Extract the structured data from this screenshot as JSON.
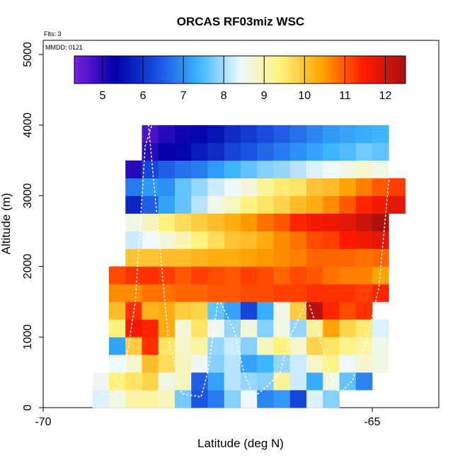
{
  "chart_data": {
    "type": "heatmap",
    "title": "ORCAS RF03miz WSC",
    "xlabel": "Latitude (deg N)",
    "ylabel": "Altitude (m)",
    "corner_label": "Flts: 3",
    "date_label": "MMDD: 0121",
    "x_range": [
      -70,
      -64
    ],
    "y_range": [
      0,
      5200
    ],
    "x_ticks": [
      -70,
      -65
    ],
    "x_tick_labels": [
      "-70",
      "-65"
    ],
    "y_ticks": [
      0,
      1000,
      2000,
      3000,
      4000,
      5000
    ],
    "y_tick_labels": [
      "0",
      "1000",
      "2000",
      "3000",
      "4000",
      "5000"
    ],
    "colorbar": {
      "range": [
        4.3,
        12.5
      ],
      "ticks": [
        5,
        6,
        7,
        8,
        9,
        10,
        11,
        12
      ],
      "tick_labels": [
        "5",
        "6",
        "7",
        "8",
        "9",
        "10",
        "11",
        "12"
      ],
      "stops": [
        "#7a1fe0",
        "#0000a8",
        "#1a4fe0",
        "#3ab4ff",
        "#eef8ff",
        "#fff27a",
        "#ffa000",
        "#ff1a00",
        "#a81010"
      ]
    },
    "cell_width_deg": 0.25,
    "cell_height_m": 250,
    "rows": [
      {
        "alt": 125,
        "start": -69.25,
        "values": [
          8.3,
          8.6,
          9.1,
          9.1,
          8.9,
          7.7,
          6.4,
          6.8,
          7.8,
          8.4,
          6.9,
          7.1,
          6.2,
          8.3,
          7.8
        ]
      },
      {
        "alt": 375,
        "start": -69.25,
        "values": [
          8.5,
          9.4,
          9.6,
          9.8,
          8.6,
          8.9,
          6.5,
          7.2,
          8.1,
          7.9,
          7.8,
          9.2,
          8.2,
          7.3,
          8.6,
          7.6,
          6.9
        ]
      },
      {
        "alt": 625,
        "start": -69.0,
        "values": [
          8.4,
          8.8,
          10.1,
          9.7,
          8.9,
          8.5,
          7.8,
          8.1,
          7.2,
          7.4,
          7.9,
          8.2,
          8.8,
          9.3,
          8.4,
          8.8,
          8.6
        ]
      },
      {
        "alt": 875,
        "start": -69.0,
        "values": [
          7.2,
          9.9,
          11.3,
          9.6,
          8.8,
          9.1,
          7.9,
          8.2,
          7.8,
          8.9,
          9.4,
          8.8,
          9.8,
          9.6,
          9.3,
          9.1,
          8.6
        ]
      },
      {
        "alt": 1125,
        "start": -69.0,
        "values": [
          9.4,
          11.6,
          11.4,
          10.3,
          8.7,
          9.6,
          8.5,
          7.9,
          8.7,
          7.8,
          8.6,
          7.9,
          9.2,
          10.4,
          9.8,
          9.5,
          8.3
        ]
      },
      {
        "alt": 1375,
        "start": -69.0,
        "values": [
          10.1,
          11.3,
          10.2,
          10.3,
          9.9,
          9.8,
          7.6,
          7.2,
          6.2,
          7.3,
          8.6,
          9.9,
          12.3,
          11.4,
          11.1,
          11.3
        ]
      },
      {
        "alt": 1625,
        "start": -69.0,
        "values": [
          10.6,
          10.6,
          10.8,
          10.8,
          10.9,
          10.9,
          11.0,
          11.0,
          11.1,
          11.1,
          11.2,
          11.2,
          11.3,
          11.3,
          11.3,
          11.2,
          11.4
        ]
      },
      {
        "alt": 1875,
        "start": -69.0,
        "values": [
          11.1,
          11.3,
          11.3,
          11.2,
          11.0,
          11.2,
          11.1,
          11.0,
          11.2,
          11.1,
          10.9,
          11.1,
          11.0,
          10.8,
          10.7,
          10.7,
          10.4
        ]
      },
      {
        "alt": 2125,
        "start": -68.75,
        "values": [
          10.0,
          10.0,
          10.1,
          10.1,
          10.2,
          10.3,
          10.3,
          10.4,
          10.5,
          10.6,
          10.7,
          10.9,
          10.9,
          10.9,
          10.8,
          10.9
        ]
      },
      {
        "alt": 2375,
        "start": -68.75,
        "values": [
          8.2,
          8.4,
          8.7,
          9.0,
          9.4,
          9.7,
          10.0,
          10.1,
          10.3,
          10.6,
          10.8,
          11.1,
          11.2,
          11.5,
          11.6,
          11.8
        ]
      },
      {
        "alt": 2625,
        "start": -68.75,
        "values": [
          8.6,
          8.9,
          9.4,
          9.7,
          9.9,
          10.1,
          10.3,
          10.5,
          10.8,
          11.0,
          11.4,
          11.6,
          11.7,
          11.8,
          12.1,
          12.4
        ]
      },
      {
        "alt": 2875,
        "start": -68.75,
        "values": [
          5.8,
          6.5,
          7.2,
          7.6,
          8.1,
          8.6,
          8.9,
          9.4,
          9.6,
          9.8,
          10.1,
          10.3,
          10.6,
          11.0,
          11.4,
          11.6,
          11.8
        ]
      },
      {
        "alt": 3125,
        "start": -68.75,
        "values": [
          6.8,
          7.1,
          7.0,
          7.6,
          7.9,
          8.2,
          8.4,
          8.7,
          9.2,
          9.5,
          9.6,
          10.0,
          10.1,
          10.4,
          10.7,
          11.0,
          11.2
        ]
      },
      {
        "alt": 3375,
        "start": -68.75,
        "values": [
          5.0,
          6.2,
          6.5,
          6.7,
          6.8,
          7.1,
          7.4,
          7.6,
          7.8,
          7.9,
          8.1,
          8.3,
          8.4,
          8.6,
          8.8,
          8.6
        ]
      },
      {
        "alt": 3625,
        "start": -68.5,
        "values": [
          5.0,
          5.3,
          5.4,
          5.7,
          5.9,
          6.2,
          6.4,
          6.6,
          6.8,
          7.0,
          7.2,
          7.4,
          7.5,
          7.7,
          7.6
        ]
      },
      {
        "alt": 3875,
        "start": -68.5,
        "values": [
          4.7,
          5.0,
          5.2,
          5.4,
          5.6,
          5.9,
          6.1,
          6.3,
          6.5,
          6.7,
          6.9,
          7.1,
          7.2,
          7.3,
          7.4
        ]
      }
    ],
    "flight_tracks": [
      [
        [
          -69.1,
          200
        ],
        [
          -68.9,
          180
        ],
        [
          -68.75,
          600
        ],
        [
          -68.6,
          1500
        ],
        [
          -68.45,
          3700
        ],
        [
          -68.35,
          4000
        ]
      ],
      [
        [
          -68.4,
          4000
        ],
        [
          -68.25,
          2500
        ],
        [
          -68.1,
          1000
        ],
        [
          -67.9,
          200
        ],
        [
          -67.6,
          150
        ],
        [
          -67.5,
          500
        ],
        [
          -67.35,
          1480
        ]
      ],
      [
        [
          -67.3,
          1480
        ],
        [
          -67.1,
          1100
        ],
        [
          -66.95,
          500
        ],
        [
          -66.8,
          150
        ],
        [
          -66.6,
          300
        ],
        [
          -66.4,
          500
        ],
        [
          -66.25,
          1000
        ],
        [
          -66.0,
          1500
        ]
      ],
      [
        [
          -65.95,
          1450
        ],
        [
          -65.8,
          1000
        ],
        [
          -65.65,
          500
        ],
        [
          -65.5,
          200
        ],
        [
          -65.3,
          380
        ],
        [
          -65.1,
          900
        ],
        [
          -64.9,
          1700
        ],
        [
          -64.75,
          3200
        ],
        [
          -64.6,
          3800
        ]
      ]
    ]
  }
}
